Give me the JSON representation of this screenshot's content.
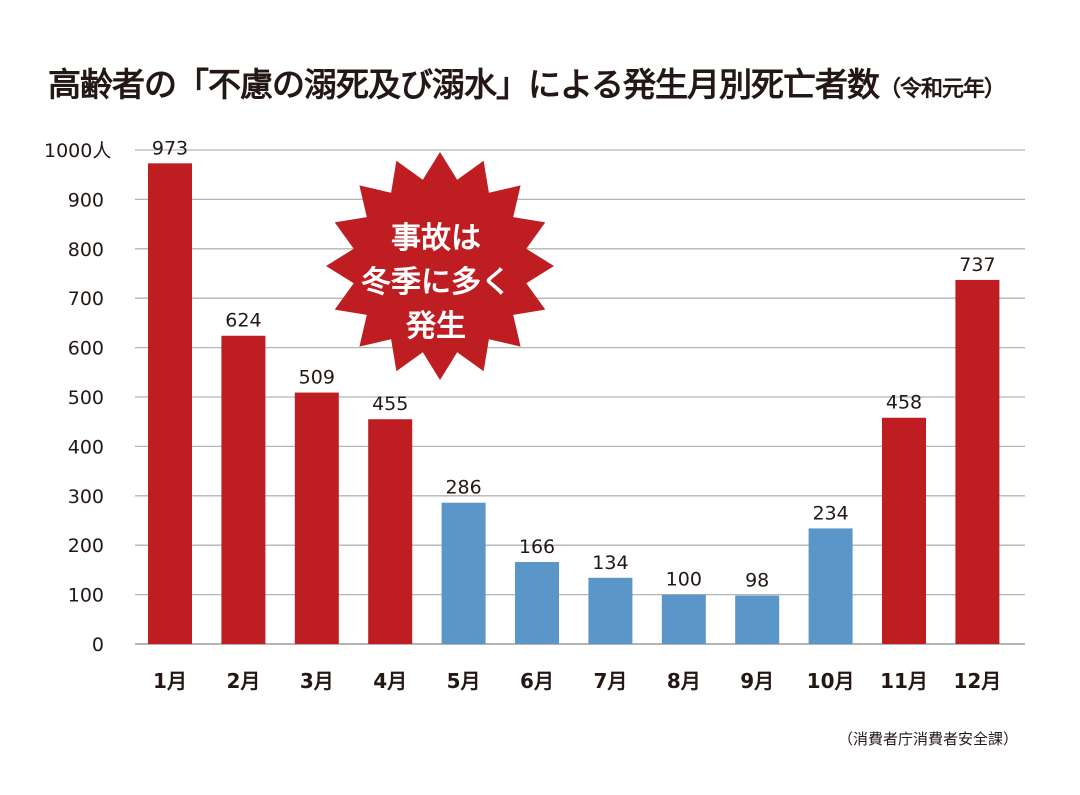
{
  "title": "高齢者の「不慮の溺死及び溺水」による発生月別死亡者数",
  "title_suffix": "（令和元年）",
  "source": "（消費者庁消費者安全課）",
  "callout": {
    "lines": [
      "事故は",
      "冬季に多く",
      "発生"
    ],
    "color": "#be1e22"
  },
  "chart_data": {
    "type": "bar",
    "categories": [
      "1月",
      "2月",
      "3月",
      "4月",
      "5月",
      "6月",
      "7月",
      "8月",
      "9月",
      "10月",
      "11月",
      "12月"
    ],
    "values": [
      973,
      624,
      509,
      455,
      286,
      166,
      134,
      100,
      98,
      234,
      458,
      737
    ],
    "bar_colors": [
      "#be1e22",
      "#be1e22",
      "#be1e22",
      "#be1e22",
      "#5a96c8",
      "#5a96c8",
      "#5a96c8",
      "#5a96c8",
      "#5a96c8",
      "#5a96c8",
      "#be1e22",
      "#be1e22"
    ],
    "ylim": [
      0,
      1000
    ],
    "yticks": [
      0,
      100,
      200,
      300,
      400,
      500,
      600,
      700,
      800,
      900,
      1000
    ],
    "ytick_labels": [
      "0",
      "100",
      "200",
      "300",
      "400",
      "500",
      "600",
      "700",
      "800",
      "900",
      "1000人"
    ],
    "grid": true,
    "data_labels": true
  }
}
